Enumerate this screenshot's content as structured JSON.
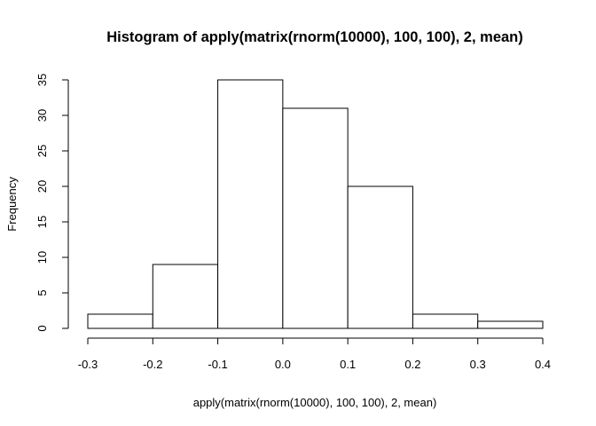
{
  "chart_data": {
    "type": "bar",
    "subtype": "histogram",
    "title": "Histogram of apply(matrix(rnorm(10000), 100, 100), 2, mean)",
    "xlabel": "apply(matrix(rnorm(10000), 100, 100), 2, mean)",
    "ylabel": "Frequency",
    "bins": [
      {
        "x0": -0.3,
        "x1": -0.2,
        "count": 2
      },
      {
        "x0": -0.2,
        "x1": -0.1,
        "count": 9
      },
      {
        "x0": -0.1,
        "x1": 0.0,
        "count": 35
      },
      {
        "x0": 0.0,
        "x1": 0.1,
        "count": 31
      },
      {
        "x0": 0.1,
        "x1": 0.2,
        "count": 20
      },
      {
        "x0": 0.2,
        "x1": 0.3,
        "count": 2
      },
      {
        "x0": 0.3,
        "x1": 0.4,
        "count": 1
      }
    ],
    "xlim": [
      -0.3,
      0.4
    ],
    "ylim": [
      0,
      35
    ],
    "x_ticks": [
      -0.3,
      -0.2,
      -0.1,
      0.0,
      0.1,
      0.2,
      0.3,
      0.4
    ],
    "x_tick_labels": [
      "-0.3",
      "-0.2",
      "-0.1",
      "0.0",
      "0.1",
      "0.2",
      "0.3",
      "0.4"
    ],
    "y_ticks": [
      0,
      5,
      10,
      15,
      20,
      25,
      30,
      35
    ],
    "y_tick_labels": [
      "0",
      "5",
      "10",
      "15",
      "20",
      "25",
      "30",
      "35"
    ],
    "bar_fill": "#ffffff",
    "bar_stroke": "#000000",
    "grid": false
  }
}
